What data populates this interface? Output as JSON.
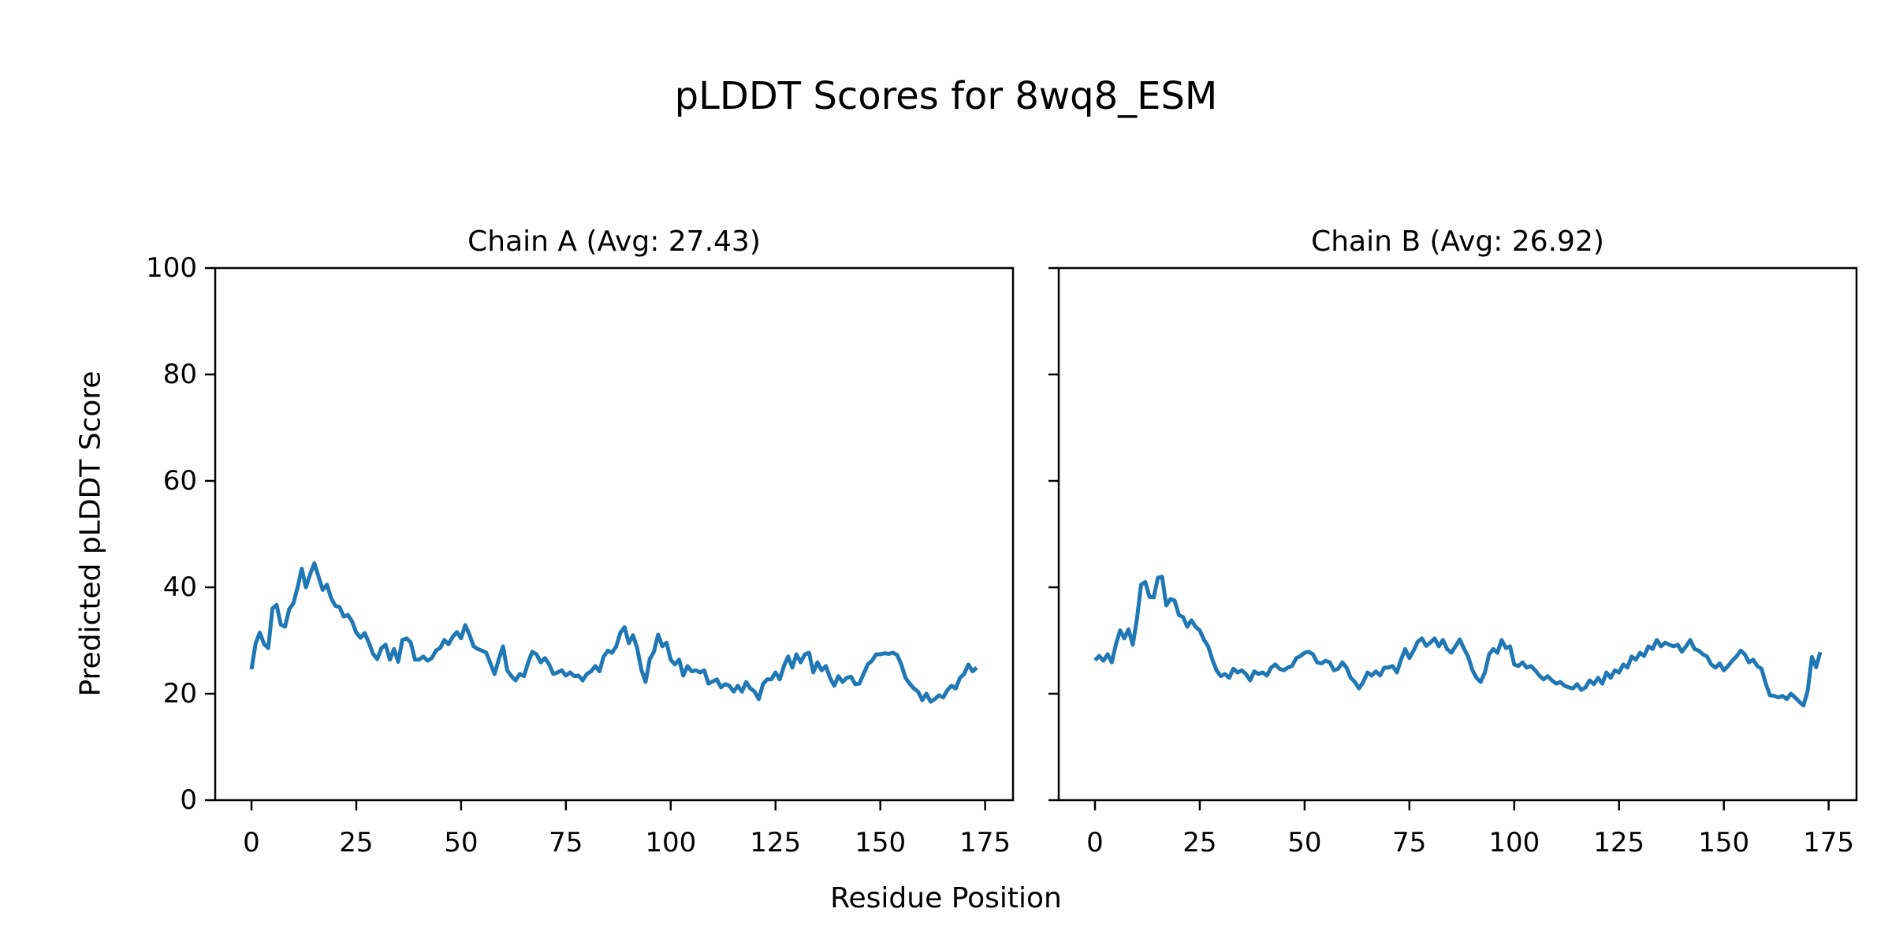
{
  "figure": {
    "suptitle": "pLDDT Scores for 8wq8_ESM",
    "xlabel": "Residue Position",
    "ylabel": "Predicted pLDDT Score",
    "background_color": "#ffffff",
    "text_color": "#000000",
    "spine_color": "#000000",
    "line_color": "#1f77b4"
  },
  "chart_data": [
    {
      "type": "line",
      "title": "Chain A (Avg: 27.43)",
      "series_name": "Chain A pLDDT",
      "avg": 27.43,
      "xlabel": "Residue Position",
      "ylabel": "Predicted pLDDT Score",
      "x_ticks": [
        0,
        25,
        50,
        75,
        100,
        125,
        150,
        175
      ],
      "y_ticks": [
        0,
        20,
        40,
        60,
        80,
        100
      ],
      "xlim": [
        -8.65,
        181.65
      ],
      "ylim": [
        0,
        100
      ],
      "grid": false,
      "legend": "none",
      "show_y_tick_labels": true,
      "x_start": 0,
      "x_step": 1,
      "values": [
        24.6,
        29.5,
        31.5,
        29.3,
        28.6,
        36.0,
        36.7,
        33.0,
        32.6,
        35.9,
        37.0,
        40.0,
        43.5,
        40.0,
        42.5,
        44.5,
        42.0,
        39.5,
        40.5,
        38.0,
        36.5,
        36.3,
        34.5,
        34.8,
        33.6,
        31.5,
        30.5,
        31.4,
        29.6,
        27.5,
        26.5,
        28.6,
        29.2,
        26.4,
        28.4,
        26.0,
        30.1,
        30.4,
        29.6,
        26.4,
        26.4,
        27.0,
        26.2,
        26.7,
        28.1,
        28.6,
        30.1,
        29.3,
        30.7,
        31.6,
        30.4,
        32.9,
        31.1,
        28.9,
        28.4,
        28.1,
        27.7,
        25.7,
        23.7,
        26.5,
        28.9,
        24.4,
        23.3,
        22.5,
        23.7,
        23.3,
        25.9,
        27.9,
        27.4,
        25.9,
        26.7,
        25.5,
        23.7,
        24.0,
        24.4,
        23.4,
        24.0,
        23.3,
        23.4,
        22.5,
        23.7,
        24.2,
        25.2,
        24.2,
        27.0,
        28.1,
        27.7,
        28.9,
        31.5,
        32.5,
        29.5,
        31.0,
        28.6,
        24.5,
        22.2,
        26.5,
        27.9,
        31.1,
        28.9,
        29.6,
        26.4,
        25.5,
        26.4,
        23.4,
        25.2,
        24.2,
        24.4,
        24.0,
        24.4,
        21.9,
        22.3,
        22.7,
        21.2,
        21.8,
        21.5,
        20.4,
        21.5,
        20.4,
        22.2,
        21.0,
        20.4,
        19.0,
        21.8,
        22.7,
        22.7,
        24.0,
        22.7,
        25.2,
        27.0,
        24.9,
        27.4,
        25.9,
        27.4,
        27.7,
        24.0,
        25.9,
        24.4,
        25.2,
        23.0,
        21.5,
        23.3,
        22.2,
        23.0,
        23.2,
        21.8,
        21.9,
        23.7,
        25.5,
        26.2,
        27.4,
        27.4,
        27.6,
        27.5,
        27.7,
        27.3,
        25.5,
        23.0,
        21.9,
        21.0,
        20.4,
        18.8,
        20.0,
        18.5,
        19.0,
        19.7,
        19.3,
        20.7,
        21.5,
        21.0,
        23.0,
        23.7,
        25.5,
        24.2,
        24.9
      ]
    },
    {
      "type": "line",
      "title": "Chain B (Avg: 26.92)",
      "series_name": "Chain B pLDDT",
      "avg": 26.92,
      "xlabel": "Residue Position",
      "ylabel": "Predicted pLDDT Score",
      "x_ticks": [
        0,
        25,
        50,
        75,
        100,
        125,
        150,
        175
      ],
      "y_ticks": [
        0,
        20,
        40,
        60,
        80,
        100
      ],
      "xlim": [
        -8.65,
        181.65
      ],
      "ylim": [
        0,
        100
      ],
      "grid": false,
      "legend": "none",
      "show_y_tick_labels": false,
      "x_start": 0,
      "x_step": 1,
      "values": [
        26.3,
        27.1,
        26.2,
        27.4,
        25.9,
        29.3,
        31.9,
        30.4,
        32.1,
        29.2,
        34.0,
        40.5,
        41.0,
        38.2,
        38.1,
        41.8,
        42.0,
        36.6,
        37.8,
        37.5,
        34.8,
        34.4,
        32.6,
        33.8,
        32.6,
        31.9,
        30.1,
        28.9,
        26.4,
        24.4,
        23.3,
        23.7,
        23.0,
        24.7,
        24.0,
        24.4,
        23.7,
        22.5,
        24.2,
        23.7,
        24.0,
        23.4,
        24.9,
        25.5,
        24.7,
        24.4,
        24.9,
        25.2,
        26.7,
        27.1,
        27.7,
        27.9,
        27.4,
        25.9,
        25.7,
        26.2,
        25.9,
        24.4,
        24.7,
        25.9,
        24.9,
        23.0,
        22.2,
        21.0,
        22.2,
        24.0,
        23.4,
        24.2,
        23.4,
        24.9,
        24.9,
        25.2,
        24.0,
        26.4,
        28.4,
        26.7,
        28.1,
        29.8,
        30.4,
        29.0,
        29.6,
        30.4,
        28.9,
        30.1,
        28.4,
        27.7,
        28.9,
        30.2,
        28.5,
        27.0,
        24.5,
        23.0,
        22.2,
        24.0,
        27.4,
        28.4,
        27.7,
        30.1,
        28.6,
        28.9,
        25.5,
        25.2,
        25.9,
        24.9,
        25.2,
        24.4,
        23.4,
        22.7,
        23.3,
        22.5,
        21.9,
        22.2,
        21.5,
        21.2,
        21.0,
        21.8,
        20.7,
        21.2,
        22.5,
        21.8,
        23.0,
        21.9,
        24.0,
        23.0,
        24.4,
        24.0,
        25.5,
        24.9,
        27.0,
        26.4,
        27.7,
        27.1,
        28.9,
        28.4,
        30.1,
        28.9,
        29.6,
        29.2,
        28.9,
        29.2,
        27.9,
        28.9,
        30.1,
        28.4,
        28.1,
        27.4,
        27.0,
        25.5,
        24.9,
        25.7,
        24.4,
        25.2,
        26.2,
        27.0,
        28.1,
        27.4,
        25.9,
        26.4,
        25.2,
        24.7,
        21.9,
        19.7,
        19.6,
        19.3,
        19.6,
        19.0,
        20.0,
        19.3,
        18.5,
        17.8,
        20.5,
        26.9,
        25.0,
        27.8
      ]
    }
  ]
}
